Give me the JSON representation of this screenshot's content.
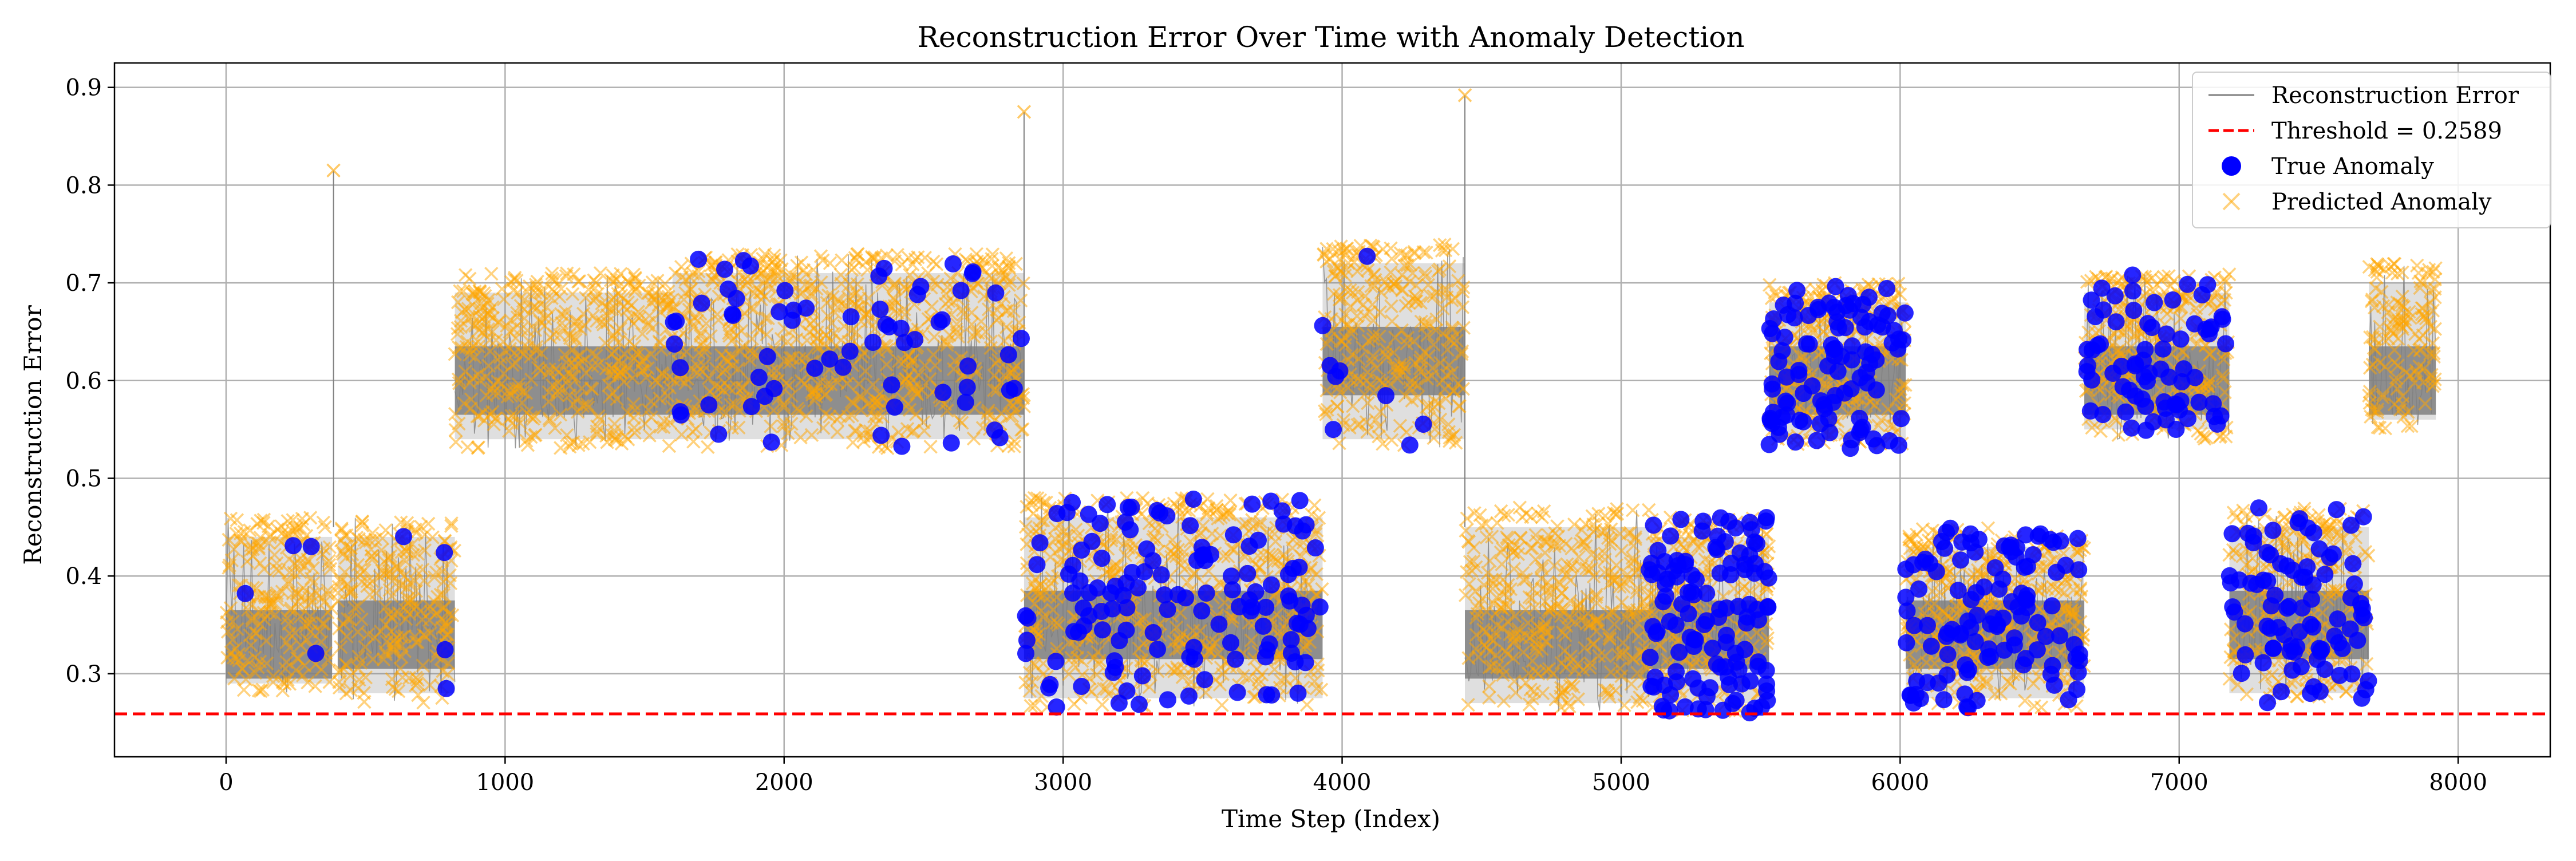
{
  "chart_data": {
    "type": "line",
    "title": "Reconstruction Error Over Time with Anomaly Detection",
    "xlabel": "Time Step (Index)",
    "ylabel": "Reconstruction Error",
    "xlim": [
      -400,
      8330
    ],
    "ylim": [
      0.215,
      0.925
    ],
    "xticks": [
      0,
      1000,
      2000,
      3000,
      4000,
      5000,
      6000,
      7000,
      8000
    ],
    "yticks": [
      0.3,
      0.4,
      0.5,
      0.6,
      0.7,
      0.8,
      0.9
    ],
    "grid": true,
    "legend_position": "top-right",
    "threshold": 0.2589,
    "colors": {
      "error_line": "#808080",
      "threshold": "#ff0000",
      "true_anomaly": "#0000ff",
      "predicted_anomaly": "#ffa500"
    },
    "legend": [
      {
        "label": "Reconstruction Error",
        "kind": "line"
      },
      {
        "label": "Threshold = 0.2589",
        "kind": "dashed"
      },
      {
        "label": "True Anomaly",
        "kind": "dot"
      },
      {
        "label": "Predicted Anomaly",
        "kind": "cross"
      }
    ],
    "segments": [
      {
        "x0": 0,
        "x1": 380,
        "low": 0.28,
        "high": 0.46,
        "core": 0.33,
        "true_anomaly_density": 0.03
      },
      {
        "x0": 400,
        "x1": 820,
        "low": 0.27,
        "high": 0.46,
        "core": 0.34,
        "true_anomaly_density": 0.03
      },
      {
        "x0": 820,
        "x1": 1600,
        "low": 0.53,
        "high": 0.71,
        "core": 0.6,
        "true_anomaly_density": 0.0
      },
      {
        "x0": 1600,
        "x1": 2860,
        "low": 0.53,
        "high": 0.73,
        "core": 0.6,
        "true_anomaly_density": 0.15
      },
      {
        "x0": 2860,
        "x1": 3930,
        "low": 0.265,
        "high": 0.48,
        "core": 0.35,
        "true_anomaly_density": 0.35
      },
      {
        "x0": 3930,
        "x1": 4440,
        "low": 0.53,
        "high": 0.74,
        "core": 0.62,
        "true_anomaly_density": 0.05
      },
      {
        "x0": 4440,
        "x1": 5100,
        "low": 0.26,
        "high": 0.47,
        "core": 0.33,
        "true_anomaly_density": 0.0
      },
      {
        "x0": 5100,
        "x1": 5530,
        "low": 0.26,
        "high": 0.46,
        "core": 0.34,
        "true_anomaly_density": 0.8
      },
      {
        "x0": 5530,
        "x1": 6020,
        "low": 0.53,
        "high": 0.7,
        "core": 0.6,
        "true_anomaly_density": 0.6
      },
      {
        "x0": 6020,
        "x1": 6660,
        "low": 0.265,
        "high": 0.45,
        "core": 0.34,
        "true_anomaly_density": 0.5
      },
      {
        "x0": 6660,
        "x1": 7180,
        "low": 0.54,
        "high": 0.71,
        "core": 0.6,
        "true_anomaly_density": 0.4
      },
      {
        "x0": 7180,
        "x1": 7680,
        "low": 0.27,
        "high": 0.47,
        "core": 0.35,
        "true_anomaly_density": 0.5
      },
      {
        "x0": 7680,
        "x1": 7920,
        "low": 0.55,
        "high": 0.72,
        "core": 0.6,
        "true_anomaly_density": 0.0
      }
    ],
    "spikes": [
      {
        "x": 385,
        "y": 0.815
      },
      {
        "x": 2860,
        "y": 0.875
      },
      {
        "x": 4440,
        "y": 0.892
      }
    ]
  }
}
